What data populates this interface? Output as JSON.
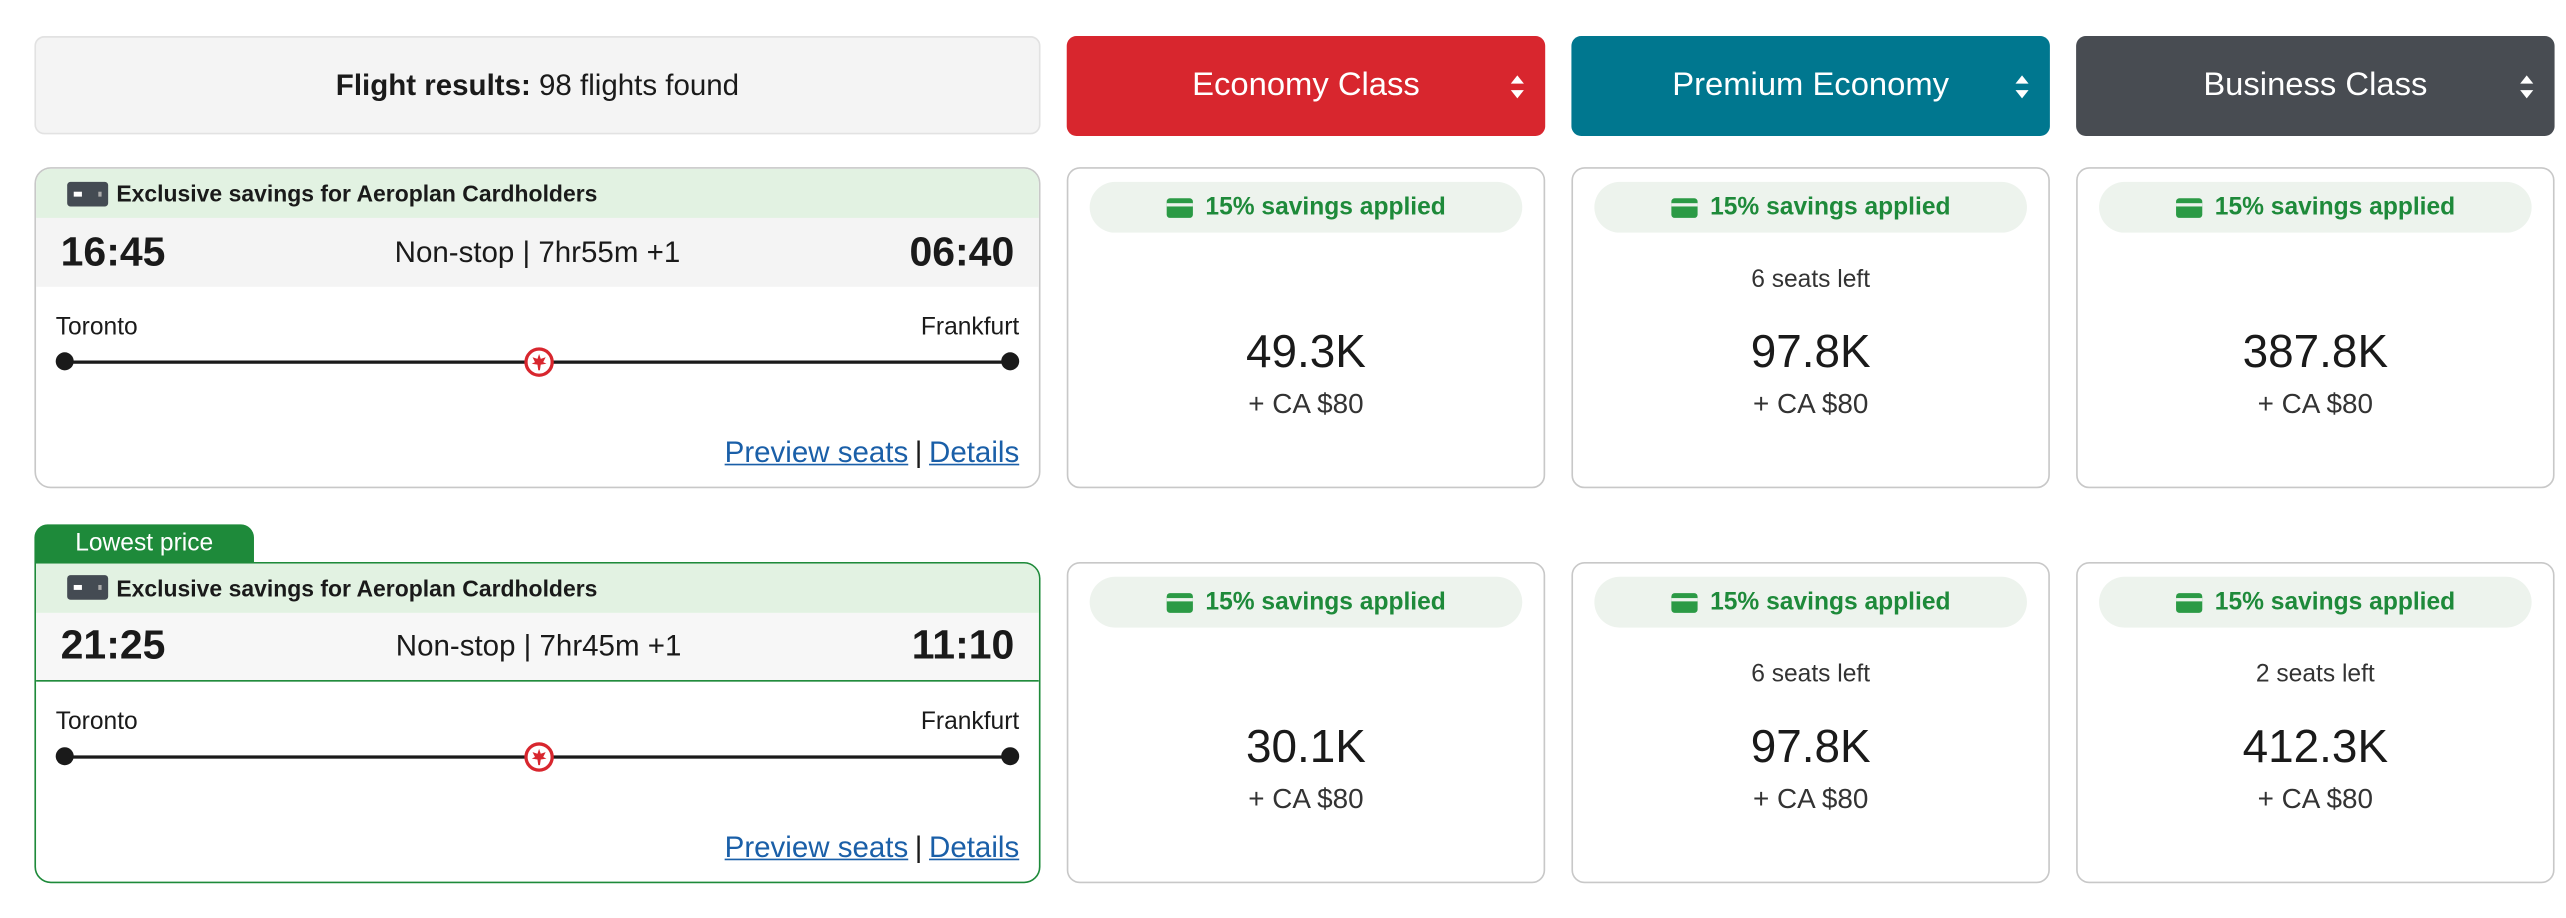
{
  "header": {
    "label": "Flight results:",
    "value": "98 flights found"
  },
  "cabins": [
    {
      "label": "Economy Class",
      "color": "#d8262e"
    },
    {
      "label": "Premium Economy",
      "color": "#00778f"
    },
    {
      "label": "Business Class",
      "color": "#484c52"
    }
  ],
  "flights": [
    {
      "banner": "Exclusive savings for Aeroplan Cardholders",
      "depart": "16:45",
      "duration": "Non-stop | 7hr55m",
      "day_offset": "+1",
      "arrive": "06:40",
      "origin": "Toronto",
      "destination": "Frankfurt",
      "preview_link": "Preview seats",
      "details_link": "Details",
      "fares": [
        {
          "savings": "15% savings applied",
          "seats": "",
          "price": "49.3K",
          "taxes": "+ CA $80"
        },
        {
          "savings": "15% savings applied",
          "seats": "6 seats left",
          "price": "97.8K",
          "taxes": "+ CA $80"
        },
        {
          "savings": "15% savings applied",
          "seats": "",
          "price": "387.8K",
          "taxes": "+ CA $80"
        }
      ]
    },
    {
      "tag": "Lowest price",
      "banner": "Exclusive savings for Aeroplan Cardholders",
      "depart": "21:25",
      "duration": "Non-stop | 7hr45m",
      "day_offset": "+1",
      "arrive": "11:10",
      "origin": "Toronto",
      "destination": "Frankfurt",
      "preview_link": "Preview seats",
      "details_link": "Details",
      "fares": [
        {
          "savings": "15% savings applied",
          "seats": "",
          "price": "30.1K",
          "taxes": "+ CA $80"
        },
        {
          "savings": "15% savings applied",
          "seats": "6 seats left",
          "price": "97.8K",
          "taxes": "+ CA $80"
        },
        {
          "savings": "15% savings applied",
          "seats": "2 seats left",
          "price": "412.3K",
          "taxes": "+ CA $80"
        }
      ]
    }
  ],
  "icons": {
    "card": "credit-card-icon",
    "maple": "maple-leaf-icon",
    "sort": "sort-arrows-icon"
  }
}
